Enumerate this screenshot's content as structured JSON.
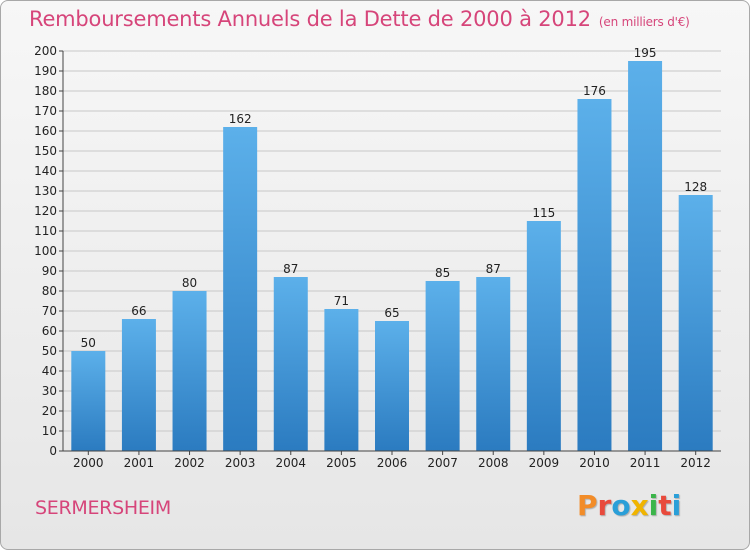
{
  "header": {
    "title": "Remboursements Annuels de la Dette de 2000 à 2012",
    "unit": "(en milliers d'€)"
  },
  "footer": {
    "commune": "SERMERSHEIM",
    "logo": "Proxiti",
    "logo_colors": [
      "#f28c28",
      "#e84a3c",
      "#2a9fd8",
      "#f0b400",
      "#3bb54a",
      "#e84a3c",
      "#2a9fd8"
    ]
  },
  "colors": {
    "bar_top": "#5cb0ea",
    "bar_bottom": "#2b7bc0",
    "grid": "#c8c8c8",
    "axis": "#444444",
    "text": "#222222",
    "accent": "#d6457a"
  },
  "chart_data": {
    "type": "bar",
    "title": "Remboursements Annuels de la Dette de 2000 à 2012",
    "ylabel": "(en milliers d'€)",
    "xlabel": "",
    "categories": [
      "2000",
      "2001",
      "2002",
      "2003",
      "2004",
      "2005",
      "2006",
      "2007",
      "2008",
      "2009",
      "2010",
      "2011",
      "2012"
    ],
    "values": [
      50,
      66,
      80,
      162,
      87,
      71,
      65,
      85,
      87,
      115,
      176,
      195,
      128
    ],
    "ylim": [
      0,
      200
    ],
    "ytick_step": 10,
    "grid": true
  }
}
